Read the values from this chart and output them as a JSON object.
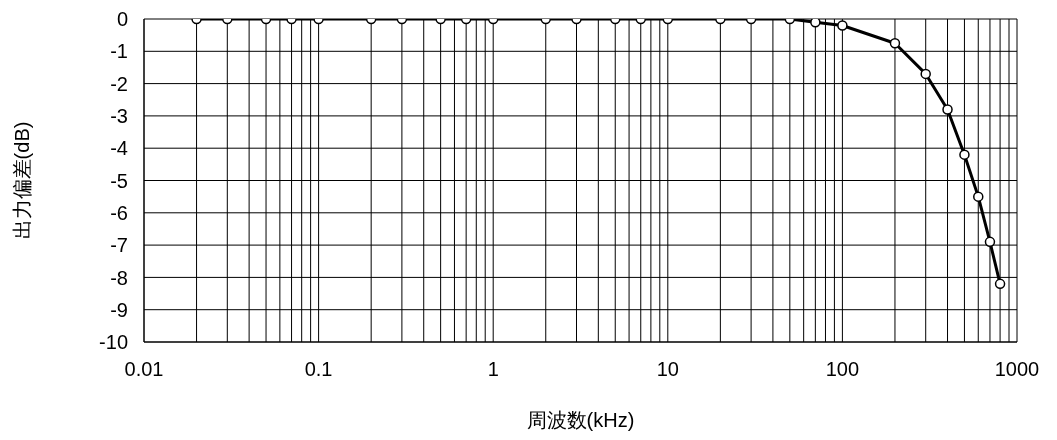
{
  "chart_data": {
    "type": "line",
    "xlabel": "周波数(kHz)",
    "ylabel": "出力偏差(dB)",
    "x": [
      0.02,
      0.03,
      0.05,
      0.07,
      0.1,
      0.2,
      0.3,
      0.5,
      0.7,
      1,
      2,
      3,
      5,
      7,
      10,
      20,
      30,
      50,
      70,
      100,
      200,
      300,
      400,
      500,
      600,
      700,
      800
    ],
    "series": [
      {
        "color": "#000000",
        "values": [
          0,
          0,
          0,
          0,
          0,
          0,
          0,
          0,
          0,
          0,
          0,
          0,
          0,
          0,
          0,
          0,
          0,
          0,
          -0.1,
          -0.2,
          -0.75,
          -1.7,
          -2.8,
          -4.2,
          -5.5,
          -6.9,
          -8.2
        ]
      }
    ],
    "log": "x",
    "xlim": [
      0.01,
      1000
    ],
    "xticks": [
      0.01,
      {
        "value": 0.02,
        "label": null
      },
      {
        "value": 0.03,
        "label": null
      },
      {
        "value": 0.04,
        "label": null
      },
      {
        "value": 0.05,
        "label": null
      },
      {
        "value": 0.06,
        "label": null
      },
      {
        "value": 0.07,
        "label": null
      },
      {
        "value": 0.08,
        "label": null
      },
      {
        "value": 0.09,
        "label": null
      },
      0.1,
      {
        "value": 0.2,
        "label": null
      },
      {
        "value": 0.3,
        "label": null
      },
      {
        "value": 0.4,
        "label": null
      },
      {
        "value": 0.5,
        "label": null
      },
      {
        "value": 0.6,
        "label": null
      },
      {
        "value": 0.7,
        "label": null
      },
      {
        "value": 0.8,
        "label": null
      },
      {
        "value": 0.9,
        "label": null
      },
      1,
      {
        "value": 2,
        "label": null
      },
      {
        "value": 3,
        "label": null
      },
      {
        "value": 4,
        "label": null
      },
      {
        "value": 5,
        "label": null
      },
      {
        "value": 6,
        "label": null
      },
      {
        "value": 7,
        "label": null
      },
      {
        "value": 8,
        "label": null
      },
      {
        "value": 9,
        "label": null
      },
      10,
      {
        "value": 20,
        "label": null
      },
      {
        "value": 30,
        "label": null
      },
      {
        "value": 40,
        "label": null
      },
      {
        "value": 50,
        "label": null
      },
      {
        "value": 60,
        "label": null
      },
      {
        "value": 70,
        "label": null
      },
      {
        "value": 80,
        "label": null
      },
      {
        "value": 90,
        "label": null
      },
      100,
      {
        "value": 200,
        "label": null
      },
      {
        "value": 300,
        "label": null
      },
      {
        "value": 400,
        "label": null
      },
      {
        "value": 500,
        "label": null
      },
      {
        "value": 600,
        "label": null
      },
      {
        "value": 700,
        "label": null
      },
      {
        "value": 800,
        "label": null
      },
      {
        "value": 900,
        "label": null
      },
      1000
    ],
    "ylim": [
      -10,
      0
    ],
    "yticks": [
      0,
      -1,
      -2,
      -3,
      -4,
      -5,
      -6,
      -7,
      -8,
      -9,
      -10
    ],
    "grid": true,
    "marker": "circle",
    "line_style": "solid",
    "legend": false
  }
}
